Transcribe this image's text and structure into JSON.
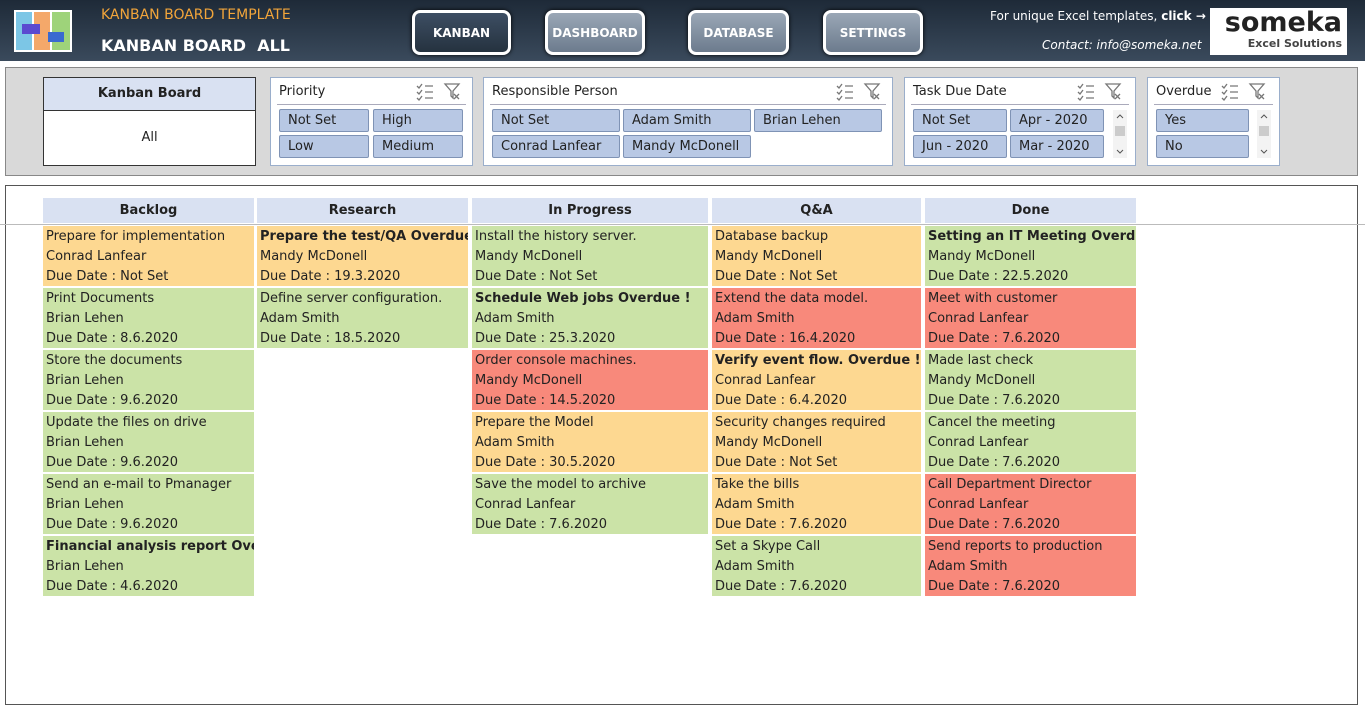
{
  "header": {
    "template_title": "KANBAN BOARD TEMPLATE",
    "board_title": "KANBAN BOARD",
    "board_filter": "ALL",
    "nav": [
      "KANBAN",
      "DASHBOARD",
      "DATABASE",
      "SETTINGS"
    ],
    "promo_text": "For unique Excel templates,",
    "promo_link": "click →",
    "contact": "Contact: info@someka.net",
    "logo": "someka",
    "logo_sub": "Excel Solutions"
  },
  "filters": {
    "kanban_board": {
      "title": "Kanban Board",
      "value": "All"
    },
    "slicers": [
      {
        "title": "Priority",
        "items": [
          "Not Set",
          "High",
          "Low",
          "Medium"
        ]
      },
      {
        "title": "Responsible Person",
        "items": [
          "Not Set",
          "Adam Smith",
          "Brian Lehen",
          "Conrad Lanfear",
          "Mandy McDonell"
        ]
      },
      {
        "title": "Task Due Date",
        "items": [
          "Not Set",
          "Apr - 2020",
          "Jun - 2020",
          "Mar - 2020"
        ]
      },
      {
        "title": "Overdue",
        "items": [
          "Yes",
          "No"
        ]
      }
    ]
  },
  "board": {
    "columns": [
      {
        "name": "Backlog",
        "cards": [
          {
            "task": "Prepare for implementation",
            "person": "Conrad Lanfear",
            "due": "Due Date : Not Set",
            "color": "#fdd891"
          },
          {
            "task": "Print Documents",
            "person": "Brian Lehen",
            "due": "Due Date : 8.6.2020",
            "color": "#cbe3a7"
          },
          {
            "task": "Store the documents",
            "person": "Brian Lehen",
            "due": "Due Date : 9.6.2020",
            "color": "#cbe3a7"
          },
          {
            "task": "Update the files on drive",
            "person": "Brian Lehen",
            "due": "Due Date : 9.6.2020",
            "color": "#cbe3a7"
          },
          {
            "task": "Send an e-mail to Pmanager",
            "person": "Brian Lehen",
            "due": "Due Date : 9.6.2020",
            "color": "#cbe3a7"
          },
          {
            "task": "Financial analysis report Overdue",
            "person": "Brian Lehen",
            "due": "Due Date : 4.6.2020",
            "color": "#cbe3a7",
            "bold": true
          }
        ]
      },
      {
        "name": "Research",
        "cards": [
          {
            "task": "Prepare the test/QA Overdue !",
            "person": "Mandy McDonell",
            "due": "Due Date : 19.3.2020",
            "color": "#fdd891",
            "bold": true
          },
          {
            "task": "Define server configuration.",
            "person": "Adam Smith",
            "due": "Due Date : 18.5.2020",
            "color": "#cbe3a7"
          }
        ]
      },
      {
        "name": "In Progress",
        "cards": [
          {
            "task": "Install the history server.",
            "person": "Mandy McDonell",
            "due": "Due Date : Not Set",
            "color": "#cbe3a7"
          },
          {
            "task": "Schedule Web jobs Overdue !",
            "person": "Adam Smith",
            "due": "Due Date : 25.3.2020",
            "color": "#cbe3a7",
            "bold": true
          },
          {
            "task": "Order console machines.",
            "person": "Mandy McDonell",
            "due": "Due Date : 14.5.2020",
            "color": "#f8897b"
          },
          {
            "task": "Prepare the Model",
            "person": "Adam Smith",
            "due": "Due Date : 30.5.2020",
            "color": "#fdd891"
          },
          {
            "task": "Save the model to archive",
            "person": "Conrad Lanfear",
            "due": "Due Date : 7.6.2020",
            "color": "#cbe3a7"
          }
        ]
      },
      {
        "name": "Q&A",
        "cards": [
          {
            "task": "Database backup",
            "person": "Mandy McDonell",
            "due": "Due Date : Not Set",
            "color": "#fdd891"
          },
          {
            "task": "Extend the data model.",
            "person": "Adam Smith",
            "due": "Due Date : 16.4.2020",
            "color": "#f8897b"
          },
          {
            "task": "Verify event flow. Overdue !",
            "person": "Conrad Lanfear",
            "due": "Due Date : 6.4.2020",
            "color": "#fdd891",
            "bold": true
          },
          {
            "task": "Security changes required",
            "person": "Mandy McDonell",
            "due": "Due Date : Not Set",
            "color": "#fdd891"
          },
          {
            "task": "Take the bills",
            "person": "Adam Smith",
            "due": "Due Date : 7.6.2020",
            "color": "#fdd891"
          },
          {
            "task": "Set a Skype Call",
            "person": "Adam Smith",
            "due": "Due Date : 7.6.2020",
            "color": "#cbe3a7"
          }
        ]
      },
      {
        "name": "Done",
        "cards": [
          {
            "task": "Setting an IT Meeting Overdue !",
            "person": "Mandy McDonell",
            "due": "Due Date : 22.5.2020",
            "color": "#cbe3a7",
            "bold": true
          },
          {
            "task": "Meet with customer",
            "person": "Conrad Lanfear",
            "due": "Due Date : 7.6.2020",
            "color": "#f8897b"
          },
          {
            "task": "Made last check",
            "person": "Mandy McDonell",
            "due": "Due Date : 7.6.2020",
            "color": "#cbe3a7"
          },
          {
            "task": "Cancel the meeting",
            "person": "Conrad Lanfear",
            "due": "Due Date : 7.6.2020",
            "color": "#cbe3a7"
          },
          {
            "task": "Call Department Director",
            "person": "Conrad Lanfear",
            "due": "Due Date : 7.6.2020",
            "color": "#f8897b"
          },
          {
            "task": "Send reports to production",
            "person": "Adam Smith",
            "due": "Due Date : 7.6.2020",
            "color": "#f8897b"
          }
        ]
      }
    ]
  }
}
